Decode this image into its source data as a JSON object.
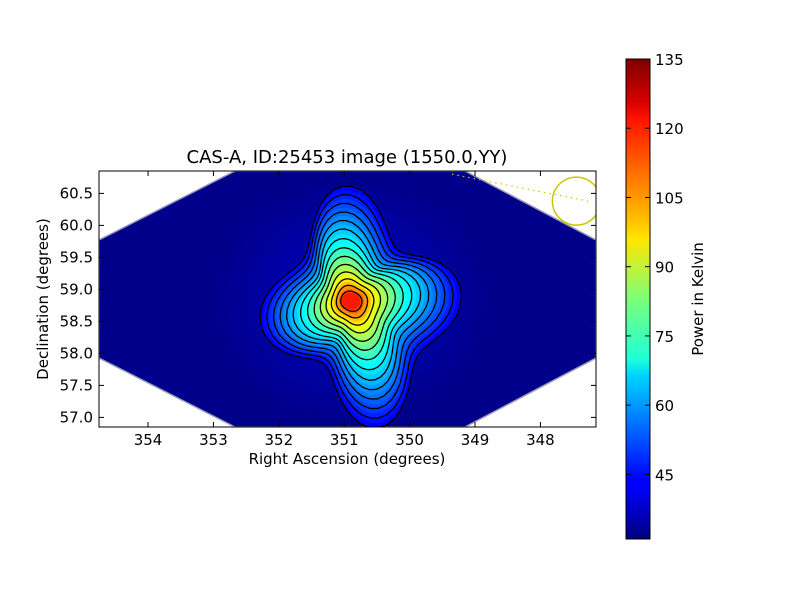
{
  "chart_data": {
    "type": "heatmap",
    "title": "CAS-A, ID:25453 image (1550.0,YY)",
    "xlabel": "Right Ascension (degrees)",
    "ylabel": "Declination (degrees)",
    "x_axis_reversed": true,
    "xlim": [
      354.75,
      347.15
    ],
    "ylim": [
      56.85,
      60.85
    ],
    "x_ticks": [
      "354",
      "353",
      "352",
      "351",
      "350",
      "349",
      "348"
    ],
    "x_tick_values": [
      354,
      353,
      352,
      351,
      350,
      349,
      348
    ],
    "y_ticks": [
      "57.0",
      "57.5",
      "58.0",
      "58.5",
      "59.0",
      "59.5",
      "60.0",
      "60.5"
    ],
    "y_tick_values": [
      57.0,
      57.5,
      58.0,
      58.5,
      59.0,
      59.5,
      60.0,
      60.5
    ],
    "colormap": "jet",
    "colorbar": {
      "label": "Power in Kelvin",
      "range": [
        31,
        135
      ],
      "ticks": [
        "45",
        "60",
        "75",
        "90",
        "105",
        "120",
        "135"
      ],
      "tick_values": [
        45,
        60,
        75,
        90,
        105,
        120,
        135
      ]
    },
    "peak": {
      "ra": 350.9,
      "dec": 58.82,
      "value": 135
    },
    "background_value": 31,
    "contour_color": "#000000",
    "beam_marker": {
      "ra": 347.45,
      "dec": 60.38,
      "color": "#c8c800"
    },
    "grid": false
  }
}
